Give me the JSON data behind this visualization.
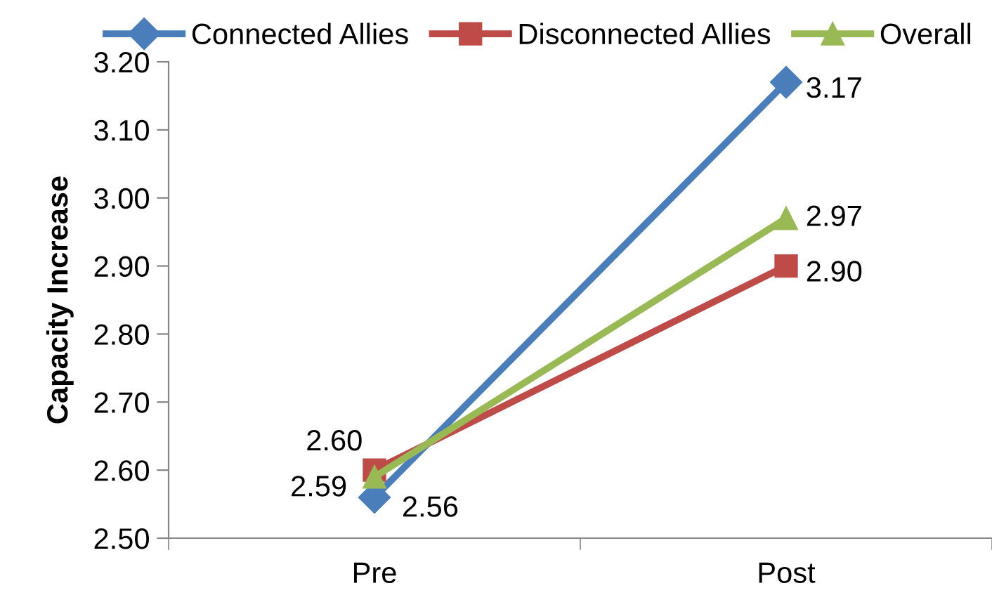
{
  "chart_data": {
    "type": "line",
    "ylabel": "Capacity Increase",
    "categories": [
      "Pre",
      "Post"
    ],
    "series": [
      {
        "name": "Connected Allies",
        "color": "#4a7ebb",
        "marker": "diamond",
        "values": [
          2.56,
          3.17
        ],
        "value_labels": [
          "2.56",
          "3.17"
        ]
      },
      {
        "name": "Disconnected Allies",
        "color": "#be4b48",
        "marker": "square",
        "values": [
          2.6,
          2.9
        ],
        "value_labels": [
          "2.60",
          "2.90"
        ]
      },
      {
        "name": "Overall",
        "color": "#98b954",
        "marker": "triangle",
        "values": [
          2.59,
          2.97
        ],
        "value_labels": [
          "2.59",
          "2.97"
        ]
      }
    ],
    "ylim": [
      2.5,
      3.2
    ],
    "yticks": [
      {
        "value": 2.5,
        "label": "2.50"
      },
      {
        "value": 2.6,
        "label": "2.60"
      },
      {
        "value": 2.7,
        "label": "2.70"
      },
      {
        "value": 2.8,
        "label": "2.80"
      },
      {
        "value": 2.9,
        "label": "2.90"
      },
      {
        "value": 3.0,
        "label": "3.00"
      },
      {
        "value": 3.1,
        "label": "3.10"
      },
      {
        "value": 3.2,
        "label": "3.20"
      }
    ],
    "grid": false,
    "legend": "top",
    "line_style": "solid"
  }
}
